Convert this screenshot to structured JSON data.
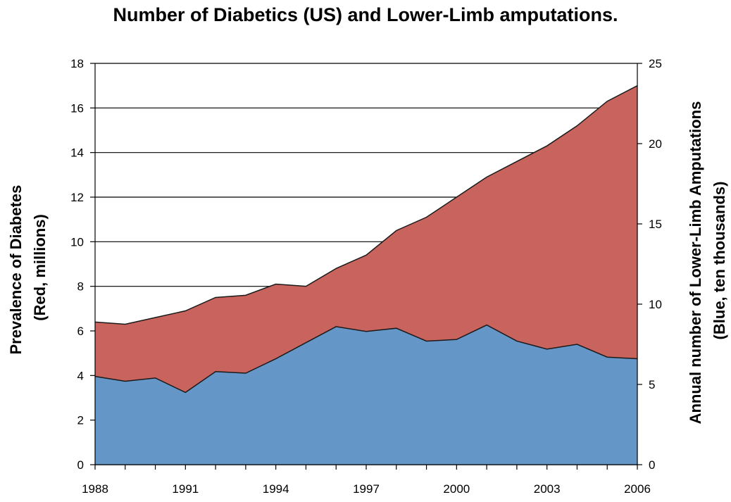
{
  "chart_data": {
    "type": "area",
    "title": "Number of Diabetics (US) and Lower-Limb amputations.",
    "x": [
      1988,
      1989,
      1990,
      1991,
      1992,
      1993,
      1994,
      1995,
      1996,
      1997,
      1998,
      1999,
      2000,
      2001,
      2002,
      2003,
      2004,
      2005,
      2006
    ],
    "x_tick_labels": [
      "1988",
      "1991",
      "1994",
      "1997",
      "2000",
      "2003",
      "2006"
    ],
    "xlim": [
      1988,
      2006
    ],
    "y_left": {
      "label_lines": [
        "Prevalence of Diabetes",
        "(Red, millions)"
      ],
      "ylim": [
        0,
        18
      ],
      "ticks": [
        "0",
        "2",
        "4",
        "6",
        "8",
        "10",
        "12",
        "14",
        "16",
        "18"
      ]
    },
    "y_right": {
      "label_lines": [
        "Annual number of Lower-Limb Amputations",
        "(Blue, ten thousands)"
      ],
      "ylim": [
        0,
        25
      ],
      "ticks": [
        "0",
        "5",
        "10",
        "15",
        "20",
        "25"
      ]
    },
    "grid": true,
    "series": [
      {
        "name": "Prevalence of Diabetes (millions)",
        "axis": "left",
        "color": "#C9635E",
        "values": [
          6.4,
          6.3,
          6.6,
          6.9,
          7.5,
          7.6,
          8.1,
          8.0,
          8.8,
          9.4,
          10.5,
          11.1,
          12.0,
          12.9,
          13.6,
          14.3,
          15.2,
          16.3,
          17.0
        ]
      },
      {
        "name": "Lower-Limb Amputations (ten thousands)",
        "axis": "right",
        "color": "#6497C8",
        "values": [
          5.5,
          5.2,
          5.4,
          4.5,
          5.8,
          5.7,
          6.6,
          7.6,
          8.6,
          8.3,
          8.5,
          7.7,
          7.8,
          8.7,
          7.7,
          7.2,
          7.5,
          6.7,
          6.6
        ]
      }
    ]
  }
}
